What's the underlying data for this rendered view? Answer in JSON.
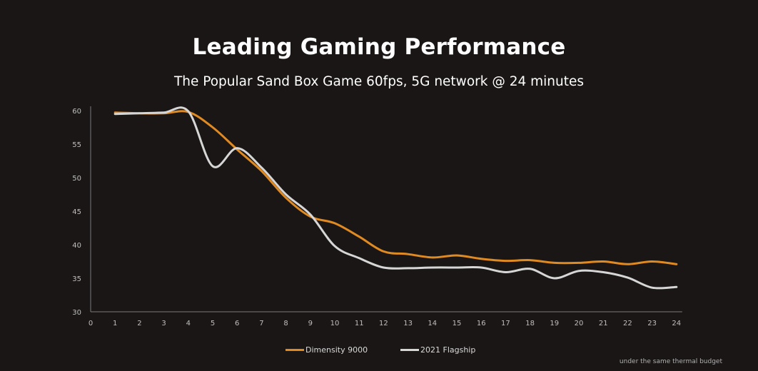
{
  "header": {
    "title": "Leading Gaming Performance",
    "subtitle": "The Popular Sand Box Game 60fps, 5G network @ 24 minutes"
  },
  "footnote": "under the same thermal budget",
  "chart_data": {
    "type": "line",
    "title": "Leading Gaming Performance",
    "subtitle": "The Popular Sand Box Game 60fps, 5G network @ 24 minutes",
    "xlabel": "",
    "ylabel": "",
    "xlim": [
      0,
      24
    ],
    "ylim": [
      30,
      60
    ],
    "x_ticks": [
      0,
      1,
      2,
      3,
      4,
      5,
      6,
      7,
      8,
      9,
      10,
      11,
      12,
      13,
      14,
      15,
      16,
      17,
      18,
      19,
      20,
      21,
      22,
      23,
      24
    ],
    "y_ticks": [
      30,
      35,
      40,
      45,
      50,
      55,
      60
    ],
    "grid": false,
    "legend_position": "bottom",
    "x": [
      1,
      2,
      3,
      4,
      5,
      6,
      7,
      8,
      9,
      10,
      11,
      12,
      13,
      14,
      15,
      16,
      17,
      18,
      19,
      20,
      21,
      22,
      23,
      24
    ],
    "series": [
      {
        "name": "Dimensity 9000",
        "color": "#e08a22",
        "values": [
          59.7,
          59.6,
          59.6,
          59.8,
          57.5,
          54.2,
          51.0,
          47.0,
          44.2,
          43.2,
          41.2,
          39.0,
          38.6,
          38.1,
          38.4,
          37.9,
          37.6,
          37.7,
          37.3,
          37.3,
          37.5,
          37.1,
          37.5,
          37.1
        ]
      },
      {
        "name": "2021 Flagship",
        "color": "#d6d6d6",
        "values": [
          59.5,
          59.6,
          59.7,
          59.9,
          51.7,
          54.4,
          51.5,
          47.5,
          44.5,
          39.8,
          38.0,
          36.6,
          36.5,
          36.6,
          36.6,
          36.6,
          35.9,
          36.4,
          35.0,
          36.1,
          35.9,
          35.1,
          33.6,
          33.7
        ]
      }
    ]
  }
}
